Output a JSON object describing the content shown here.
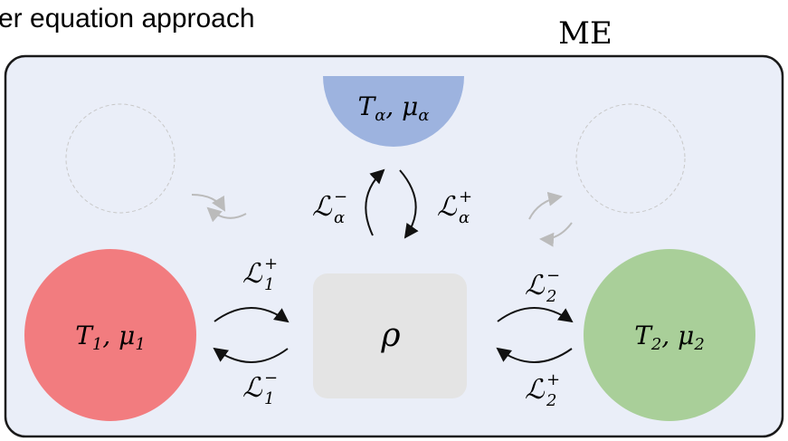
{
  "header": {
    "title": "er equation approach",
    "label": "ME"
  },
  "reservoirs": [
    {
      "parts": [
        {
          "t": "T",
          "sub": "α"
        },
        {
          "t": ", μ",
          "sub": "α"
        }
      ]
    },
    {
      "parts": [
        {
          "t": "T",
          "sub": "1"
        },
        {
          "t": ", μ",
          "sub": "1"
        }
      ]
    },
    {
      "parts": [
        {
          "t": "T",
          "sub": "2"
        },
        {
          "t": ", μ",
          "sub": "2"
        }
      ]
    }
  ],
  "system": {
    "label": "ρ"
  },
  "rates": [
    {
      "t": "ℒ",
      "sup": "−",
      "sub": "α"
    },
    {
      "t": "ℒ",
      "sup": "+",
      "sub": "α"
    },
    {
      "t": "ℒ",
      "sup": "+",
      "sub": "1"
    },
    {
      "t": "ℒ",
      "sup": "−",
      "sub": "1"
    },
    {
      "t": "ℒ",
      "sup": "−",
      "sub": "2"
    },
    {
      "t": "ℒ",
      "sup": "+",
      "sub": "2"
    }
  ]
}
